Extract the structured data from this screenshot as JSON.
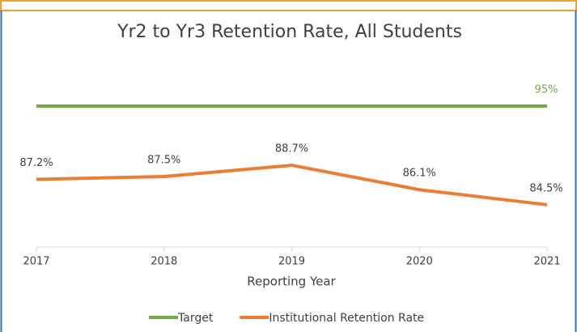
{
  "chart_data": {
    "type": "line",
    "title": "Yr2 to Yr3 Retention Rate, All Students",
    "x_label": "Reporting Year",
    "categories": [
      "2017",
      "2018",
      "2019",
      "2020",
      "2021"
    ],
    "series": [
      {
        "name": "Target",
        "color": "#70ad47",
        "values": [
          95,
          95,
          95,
          95,
          95
        ],
        "value_labels": [
          null,
          null,
          null,
          null,
          "95%"
        ]
      },
      {
        "name": "Institutional Retention Rate",
        "color": "#ed7d31",
        "values": [
          87.2,
          87.5,
          88.7,
          86.1,
          84.5
        ],
        "value_labels": [
          "87.2%",
          "87.5%",
          "88.7%",
          "86.1%",
          "84.5%"
        ]
      }
    ],
    "ylim": [
      80,
      100
    ],
    "grid": false,
    "legend": "bottom"
  }
}
